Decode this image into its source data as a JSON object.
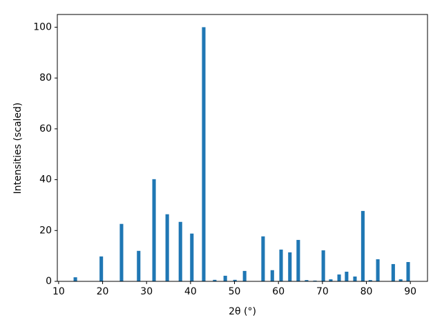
{
  "chart_data": {
    "type": "bar",
    "x_label": "2θ (°)",
    "y_label": "Intensities (scaled)",
    "color": "#1f77b4",
    "x": [
      13.8,
      19.7,
      24.3,
      28.2,
      31.7,
      34.7,
      37.7,
      40.3,
      43.0,
      45.5,
      47.9,
      50.1,
      52.3,
      56.5,
      58.6,
      60.6,
      62.6,
      64.5,
      66.4,
      68.3,
      70.2,
      71.9,
      73.8,
      75.5,
      77.4,
      79.2,
      80.9,
      82.6,
      86.1,
      87.8,
      89.5
    ],
    "values": [
      1.6,
      9.8,
      22.6,
      12.0,
      40.2,
      26.4,
      23.4,
      18.8,
      100,
      0.6,
      2.2,
      0.6,
      4.1,
      17.7,
      4.4,
      12.5,
      11.4,
      16.3,
      0.5,
      0.3,
      12.2,
      0.8,
      2.7,
      3.8,
      1.9,
      27.7,
      0.5,
      8.7,
      6.8,
      0.8,
      7.6
    ],
    "xlim": [
      9.7,
      93.9
    ],
    "ylim": [
      0,
      105
    ],
    "xticks": [
      10,
      20,
      30,
      40,
      50,
      60,
      70,
      80,
      90
    ],
    "yticks": [
      0,
      20,
      40,
      60,
      80,
      100
    ]
  }
}
